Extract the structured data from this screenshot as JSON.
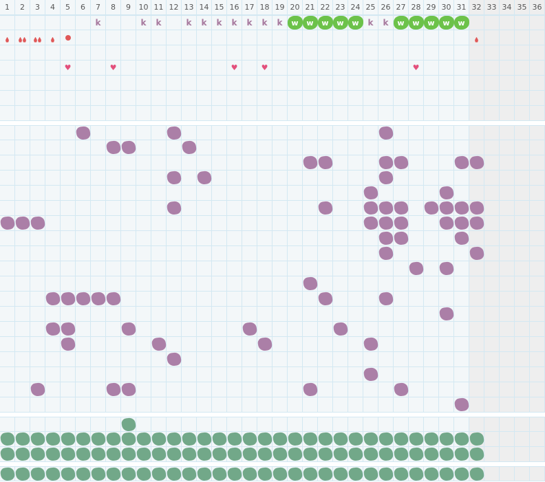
{
  "header": {
    "columns": [
      "1",
      "2",
      "3",
      "4",
      "5",
      "6",
      "7",
      "8",
      "9",
      "10",
      "11",
      "12",
      "13",
      "14",
      "15",
      "16",
      "17",
      "18",
      "19",
      "20",
      "21",
      "22",
      "23",
      "24",
      "25",
      "26",
      "27",
      "28",
      "29",
      "30",
      "31",
      "32",
      "33",
      "34",
      "35",
      "36"
    ]
  },
  "colors": {
    "grid_line": "#d3e8f2",
    "cell": "#f3f7f9",
    "inactive_cell": "#eeeeee",
    "purple_blob": "#ab7fa7",
    "green_blob": "#72a889",
    "w_badge": "#6cc24a",
    "k_text": "#a7799e",
    "drop": "#e05858",
    "heart": "#e3507c"
  },
  "active_columns": 31,
  "sections": [
    {
      "name": "top-tracker",
      "rows": [
        {
          "marks": [
            {
              "col": 7,
              "type": "k",
              "text": "k"
            },
            {
              "col": 10,
              "type": "k",
              "text": "k"
            },
            {
              "col": 11,
              "type": "k",
              "text": "k"
            },
            {
              "col": 13,
              "type": "k",
              "text": "k"
            },
            {
              "col": 14,
              "type": "k",
              "text": "k"
            },
            {
              "col": 15,
              "type": "k",
              "text": "k"
            },
            {
              "col": 16,
              "type": "k",
              "text": "k"
            },
            {
              "col": 17,
              "type": "k",
              "text": "k"
            },
            {
              "col": 18,
              "type": "k",
              "text": "k"
            },
            {
              "col": 19,
              "type": "k",
              "text": "k"
            },
            {
              "col": 20,
              "type": "w",
              "text": "w"
            },
            {
              "col": 21,
              "type": "w",
              "text": "w"
            },
            {
              "col": 22,
              "type": "w",
              "text": "w"
            },
            {
              "col": 23,
              "type": "w",
              "text": "w"
            },
            {
              "col": 24,
              "type": "w",
              "text": "w"
            },
            {
              "col": 25,
              "type": "k",
              "text": "k"
            },
            {
              "col": 26,
              "type": "k",
              "text": "k"
            },
            {
              "col": 27,
              "type": "w",
              "text": "w"
            },
            {
              "col": 28,
              "type": "w",
              "text": "w"
            },
            {
              "col": 29,
              "type": "w",
              "text": "w"
            },
            {
              "col": 30,
              "type": "w",
              "text": "w"
            },
            {
              "col": 31,
              "type": "w",
              "text": "w"
            }
          ]
        },
        {
          "marks": [
            {
              "col": 1,
              "type": "drop",
              "count": 1
            },
            {
              "col": 2,
              "type": "drop",
              "count": 2
            },
            {
              "col": 3,
              "type": "drop",
              "count": 2
            },
            {
              "col": 4,
              "type": "drop",
              "count": 1
            },
            {
              "col": 5,
              "type": "dot"
            },
            {
              "col": 32,
              "type": "drop",
              "count": 1
            }
          ]
        },
        {
          "marks": []
        },
        {
          "marks": [
            {
              "col": 5,
              "type": "heart"
            },
            {
              "col": 8,
              "type": "heart"
            },
            {
              "col": 16,
              "type": "heart"
            },
            {
              "col": 18,
              "type": "heart"
            },
            {
              "col": 28,
              "type": "heart"
            }
          ]
        },
        {
          "marks": []
        },
        {
          "marks": []
        },
        {
          "marks": []
        }
      ]
    },
    {
      "name": "purple-tracker",
      "blob": "purple",
      "rows": [
        [
          6,
          12,
          26
        ],
        [
          8,
          9,
          13
        ],
        [
          21,
          22,
          26,
          27,
          31,
          32
        ],
        [
          12,
          14,
          26
        ],
        [
          25,
          30
        ],
        [
          12,
          22,
          25,
          26,
          27,
          29,
          30,
          31,
          32
        ],
        [
          1,
          2,
          3,
          25,
          26,
          27,
          30,
          31,
          32
        ],
        [
          26,
          27,
          31
        ],
        [
          26,
          32
        ],
        [
          28,
          30
        ],
        [
          21
        ],
        [
          4,
          5,
          6,
          7,
          8,
          22,
          26
        ],
        [
          30
        ],
        [
          4,
          5,
          9,
          17,
          23
        ],
        [
          5,
          11,
          18,
          25
        ],
        [
          12
        ],
        [
          25
        ],
        [
          3,
          8,
          9,
          21,
          27
        ],
        [
          31
        ]
      ]
    },
    {
      "name": "green-tracker",
      "blob": "green",
      "rows": [
        [
          9
        ],
        [
          1,
          2,
          3,
          4,
          5,
          6,
          7,
          8,
          9,
          10,
          11,
          12,
          13,
          14,
          15,
          16,
          17,
          18,
          19,
          20,
          21,
          22,
          23,
          24,
          25,
          26,
          27,
          28,
          29,
          30,
          31,
          32
        ],
        [
          1,
          2,
          3,
          4,
          5,
          6,
          7,
          8,
          9,
          10,
          11,
          12,
          13,
          14,
          15,
          16,
          17,
          18,
          19,
          20,
          21,
          22,
          23,
          24,
          25,
          26,
          27,
          28,
          29,
          30,
          31,
          32
        ]
      ]
    },
    {
      "name": "green-summary",
      "blob": "green",
      "rows": [
        [
          1,
          2,
          3,
          4,
          5,
          6,
          7,
          8,
          9,
          10,
          11,
          12,
          13,
          14,
          15,
          16,
          17,
          18,
          19,
          20,
          21,
          22,
          23,
          24,
          25,
          26,
          27,
          28,
          29,
          30,
          31,
          32
        ]
      ]
    }
  ]
}
